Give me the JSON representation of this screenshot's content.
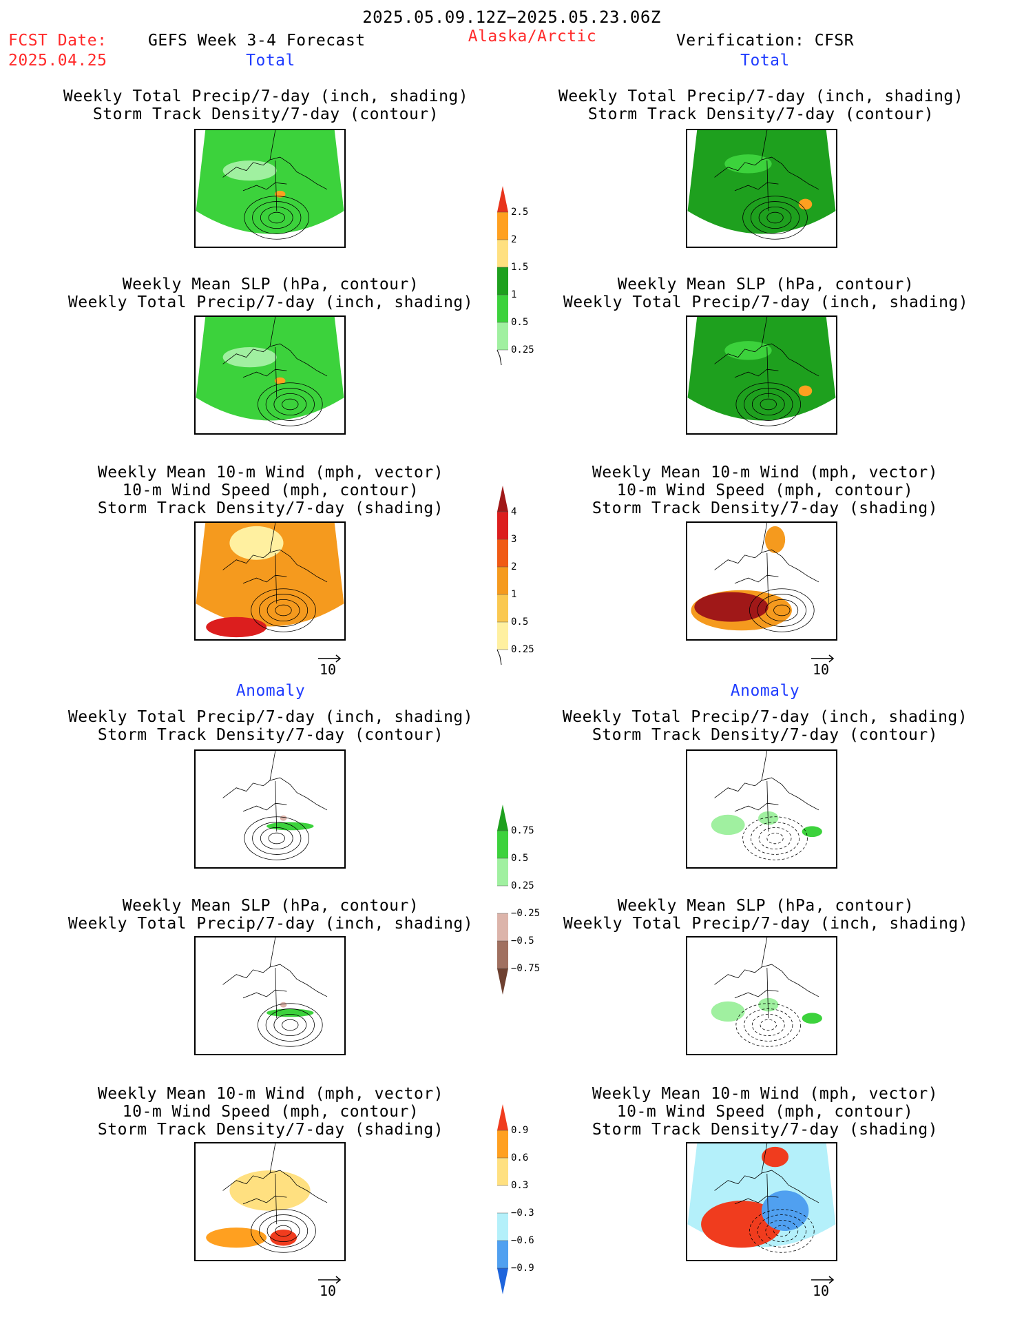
{
  "header": {
    "date_range": "2025.05.09.12Z−2025.05.23.06Z",
    "fcst_label": "FCST Date:",
    "fcst_date": "2025.04.25",
    "title": "GEFS Week 3-4 Forecast",
    "region": "Alaska/Arctic",
    "verification": "Verification: CFSR"
  },
  "sections": {
    "total_left": "Total",
    "total_right": "Total",
    "anomaly_left": "Anomaly",
    "anomaly_right": "Anomaly"
  },
  "panels": {
    "precip_std": [
      "Weekly Total Precip/7-day (inch, shading)",
      "Storm Track Density/7-day (contour)"
    ],
    "slp_precip": [
      "Weekly Mean SLP (hPa, contour)",
      "Weekly Total Precip/7-day (inch, shading)"
    ],
    "wind": [
      "Weekly Mean 10-m Wind (mph, vector)",
      "10-m Wind Speed (mph, contour)",
      "Storm Track Density/7-day (shading)"
    ]
  },
  "vector_ref": "10",
  "colorbars": {
    "precip_total": {
      "labels": [
        "2.5",
        "2",
        "1.5",
        "1",
        "0.5",
        "0.25"
      ],
      "colors": [
        "#e8341c",
        "#ffa020",
        "#ffe080",
        "#1ea01e",
        "#3cd23c",
        "#a0f0a0"
      ]
    },
    "std_total": {
      "labels": [
        "4",
        "3",
        "2",
        "1",
        "0.5",
        "0.25"
      ],
      "colors": [
        "#a01818",
        "#dc1e1e",
        "#f05a14",
        "#f59a1e",
        "#fac850",
        "#fff0a0"
      ]
    },
    "precip_anom": {
      "labels": [
        "0.75",
        "0.5",
        "0.25",
        "−0.25",
        "−0.5",
        "−0.75"
      ],
      "colors": [
        "#1ea01e",
        "#3cd23c",
        "#a0f0a0",
        "#ffffff",
        "#dcb4aa",
        "#a07060",
        "#6e4030"
      ]
    },
    "std_anom": {
      "labels": [
        "0.9",
        "0.6",
        "0.3",
        "−0.3",
        "−0.6",
        "−0.9"
      ],
      "colors": [
        "#f03c1e",
        "#ffa020",
        "#ffe080",
        "#ffffff",
        "#b4f0fa",
        "#50a0f0",
        "#1e64dc"
      ]
    }
  },
  "map_fields": {
    "precip_total_fcst": "#3cd23c",
    "precip_total_obs": "#1ea01e",
    "std_total": "#f59a1e",
    "std_anom_obs": "#b4f0fa"
  }
}
